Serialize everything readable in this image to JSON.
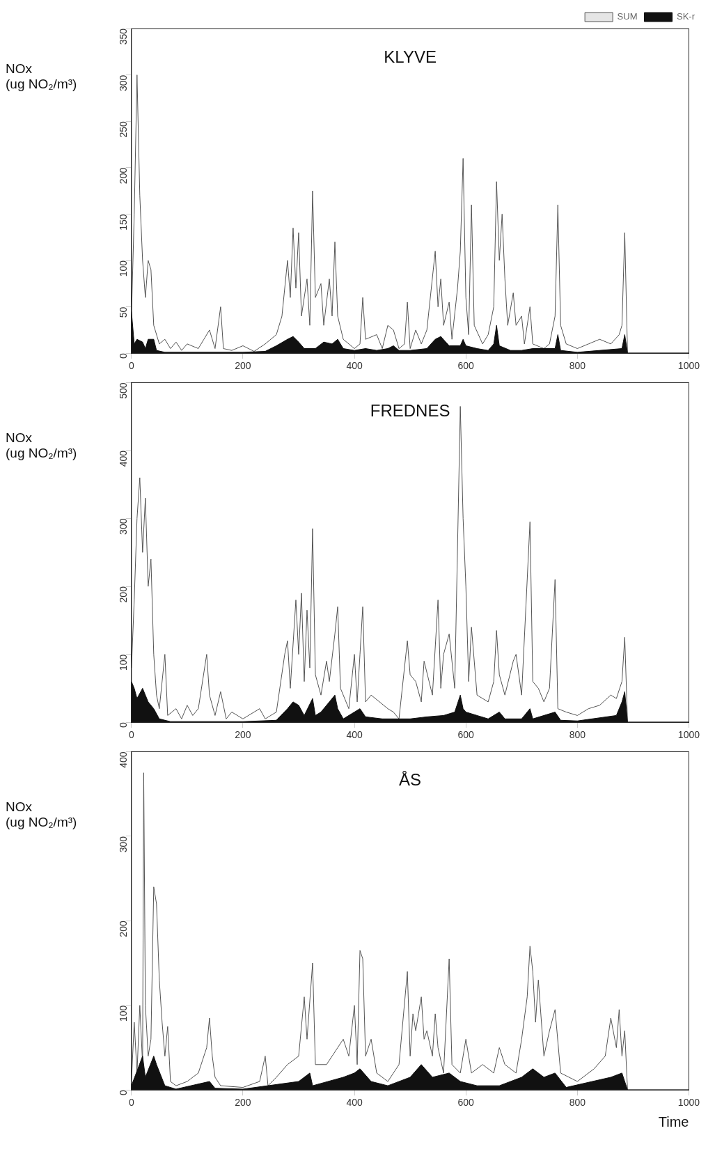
{
  "chart_data": [
    {
      "type": "line",
      "title": "KLYVE",
      "ylabel": "NOx\n(ug NO₂/m³)",
      "xlim": [
        0,
        1000
      ],
      "xticks": [
        0,
        200,
        400,
        600,
        800,
        1000
      ],
      "ylim": [
        0,
        350
      ],
      "yticks": [
        0,
        50,
        100,
        150,
        200,
        250,
        300,
        350
      ],
      "grid": false,
      "legend": "top right",
      "series": [
        {
          "name": "SUM",
          "type": "line",
          "color": "#555555",
          "x": [
            0,
            5,
            10,
            15,
            20,
            25,
            30,
            35,
            40,
            50,
            60,
            70,
            80,
            90,
            100,
            120,
            130,
            140,
            150,
            160,
            165,
            180,
            200,
            220,
            240,
            260,
            270,
            280,
            285,
            290,
            295,
            300,
            305,
            315,
            320,
            325,
            330,
            340,
            345,
            355,
            360,
            365,
            370,
            380,
            400,
            410,
            415,
            420,
            440,
            450,
            460,
            470,
            480,
            490,
            495,
            500,
            510,
            520,
            530,
            545,
            550,
            555,
            560,
            570,
            575,
            585,
            590,
            595,
            600,
            605,
            610,
            615,
            630,
            640,
            650,
            655,
            660,
            665,
            670,
            675,
            685,
            690,
            700,
            705,
            715,
            720,
            740,
            750,
            760,
            765,
            770,
            780,
            800,
            820,
            840,
            860,
            875,
            880,
            885,
            890,
            1000
          ],
          "values": [
            40,
            150,
            300,
            170,
            100,
            60,
            100,
            90,
            30,
            10,
            15,
            5,
            12,
            3,
            10,
            5,
            15,
            25,
            5,
            50,
            5,
            3,
            8,
            2,
            10,
            20,
            40,
            100,
            60,
            135,
            70,
            130,
            40,
            80,
            30,
            175,
            60,
            75,
            30,
            80,
            40,
            120,
            40,
            15,
            5,
            10,
            60,
            15,
            20,
            5,
            30,
            25,
            5,
            10,
            55,
            5,
            25,
            10,
            25,
            110,
            50,
            80,
            30,
            55,
            15,
            70,
            110,
            210,
            60,
            20,
            160,
            30,
            10,
            20,
            50,
            185,
            100,
            150,
            80,
            30,
            65,
            30,
            40,
            10,
            50,
            10,
            5,
            10,
            40,
            160,
            30,
            10,
            5,
            10,
            15,
            10,
            20,
            30,
            130,
            0,
            0
          ]
        },
        {
          "name": "SK-r",
          "type": "area",
          "color": "#111111",
          "x": [
            0,
            5,
            10,
            20,
            25,
            30,
            40,
            45,
            60,
            100,
            200,
            240,
            260,
            280,
            290,
            300,
            310,
            330,
            345,
            360,
            370,
            380,
            400,
            420,
            440,
            460,
            470,
            480,
            500,
            530,
            545,
            555,
            570,
            590,
            595,
            600,
            620,
            640,
            650,
            655,
            660,
            680,
            700,
            720,
            760,
            765,
            770,
            800,
            880,
            885,
            890,
            1000
          ],
          "values": [
            45,
            10,
            15,
            12,
            5,
            15,
            15,
            3,
            1,
            1,
            1,
            2,
            8,
            15,
            18,
            12,
            5,
            5,
            12,
            10,
            15,
            5,
            3,
            5,
            3,
            5,
            8,
            3,
            3,
            5,
            15,
            18,
            8,
            8,
            15,
            8,
            5,
            3,
            10,
            30,
            8,
            3,
            3,
            5,
            5,
            20,
            3,
            1,
            5,
            20,
            0,
            0
          ]
        }
      ]
    },
    {
      "type": "line",
      "title": "FREDNES",
      "ylabel": "NOx\n(ug NO₂/m³)",
      "xlim": [
        0,
        1000
      ],
      "xticks": [
        0,
        200,
        400,
        600,
        800,
        1000
      ],
      "ylim": [
        0,
        500
      ],
      "yticks": [
        0,
        100,
        200,
        300,
        400,
        500
      ],
      "grid": false,
      "series": [
        {
          "type": "line",
          "color": "#555555",
          "x": [
            0,
            5,
            10,
            15,
            20,
            25,
            30,
            35,
            40,
            45,
            50,
            60,
            65,
            80,
            90,
            100,
            110,
            120,
            135,
            140,
            150,
            160,
            170,
            180,
            200,
            230,
            240,
            260,
            275,
            280,
            285,
            295,
            300,
            305,
            310,
            315,
            320,
            325,
            330,
            340,
            350,
            355,
            365,
            370,
            375,
            390,
            400,
            405,
            410,
            415,
            420,
            430,
            445,
            460,
            470,
            480,
            495,
            500,
            510,
            520,
            525,
            540,
            550,
            555,
            560,
            570,
            580,
            590,
            595,
            600,
            605,
            610,
            620,
            640,
            650,
            655,
            660,
            670,
            685,
            690,
            700,
            715,
            720,
            730,
            740,
            750,
            760,
            765,
            780,
            800,
            820,
            840,
            860,
            870,
            880,
            885,
            890,
            1000
          ],
          "values": [
            80,
            180,
            300,
            360,
            250,
            330,
            200,
            240,
            100,
            40,
            20,
            100,
            10,
            20,
            5,
            25,
            10,
            20,
            100,
            40,
            10,
            45,
            5,
            15,
            5,
            20,
            5,
            15,
            100,
            120,
            50,
            180,
            100,
            190,
            60,
            165,
            80,
            285,
            70,
            40,
            90,
            60,
            130,
            170,
            50,
            20,
            100,
            30,
            100,
            170,
            30,
            40,
            30,
            20,
            15,
            5,
            120,
            70,
            60,
            30,
            90,
            40,
            180,
            50,
            100,
            130,
            50,
            465,
            300,
            200,
            60,
            140,
            40,
            30,
            60,
            135,
            70,
            40,
            90,
            100,
            40,
            295,
            60,
            50,
            30,
            50,
            210,
            20,
            15,
            10,
            20,
            25,
            40,
            35,
            60,
            125,
            0,
            0
          ]
        },
        {
          "type": "area",
          "color": "#111111",
          "x": [
            0,
            5,
            10,
            20,
            25,
            30,
            40,
            50,
            70,
            200,
            260,
            280,
            290,
            300,
            310,
            325,
            330,
            340,
            365,
            370,
            380,
            400,
            410,
            420,
            450,
            500,
            530,
            560,
            580,
            590,
            595,
            600,
            620,
            640,
            660,
            670,
            700,
            715,
            720,
            760,
            770,
            800,
            870,
            880,
            885,
            890,
            1000
          ],
          "values": [
            60,
            50,
            35,
            50,
            40,
            30,
            20,
            5,
            1,
            1,
            3,
            20,
            30,
            25,
            10,
            35,
            10,
            15,
            40,
            20,
            5,
            15,
            20,
            8,
            5,
            5,
            8,
            10,
            15,
            40,
            20,
            15,
            10,
            5,
            15,
            5,
            5,
            20,
            5,
            15,
            3,
            2,
            10,
            30,
            45,
            0,
            0
          ]
        }
      ]
    },
    {
      "type": "line",
      "title": "ÅS",
      "ylabel": "NOx\n(ug NO₂/m³)",
      "xlabel": "Time",
      "xlim": [
        0,
        1000
      ],
      "xticks": [
        0,
        200,
        400,
        600,
        800,
        1000
      ],
      "ylim": [
        0,
        400
      ],
      "yticks": [
        0,
        100,
        200,
        300,
        400
      ],
      "grid": false,
      "series": [
        {
          "type": "line",
          "color": "#555555",
          "x": [
            0,
            5,
            10,
            15,
            20,
            22,
            25,
            30,
            35,
            40,
            45,
            50,
            55,
            60,
            65,
            70,
            80,
            100,
            120,
            135,
            140,
            145,
            150,
            160,
            200,
            230,
            240,
            245,
            260,
            280,
            300,
            310,
            315,
            325,
            330,
            350,
            370,
            380,
            390,
            400,
            405,
            410,
            415,
            420,
            430,
            440,
            460,
            480,
            495,
            500,
            505,
            510,
            515,
            520,
            525,
            530,
            540,
            545,
            550,
            560,
            570,
            575,
            590,
            600,
            610,
            630,
            650,
            660,
            670,
            690,
            700,
            710,
            715,
            720,
            725,
            730,
            740,
            750,
            760,
            770,
            800,
            830,
            850,
            860,
            870,
            875,
            880,
            885,
            890,
            1000
          ],
          "values": [
            10,
            80,
            20,
            100,
            30,
            375,
            100,
            40,
            60,
            240,
            220,
            130,
            80,
            40,
            75,
            10,
            5,
            10,
            20,
            50,
            85,
            40,
            15,
            5,
            3,
            10,
            40,
            5,
            15,
            30,
            40,
            110,
            60,
            150,
            30,
            30,
            50,
            60,
            40,
            100,
            30,
            165,
            155,
            40,
            60,
            20,
            10,
            30,
            140,
            40,
            90,
            70,
            90,
            110,
            60,
            70,
            40,
            90,
            50,
            20,
            155,
            30,
            20,
            60,
            20,
            30,
            20,
            50,
            30,
            20,
            60,
            110,
            170,
            140,
            80,
            130,
            40,
            70,
            95,
            20,
            10,
            25,
            40,
            85,
            50,
            95,
            40,
            70,
            0,
            0
          ]
        },
        {
          "type": "area",
          "color": "#111111",
          "x": [
            0,
            20,
            25,
            40,
            45,
            60,
            80,
            140,
            150,
            200,
            300,
            320,
            325,
            380,
            400,
            410,
            430,
            460,
            500,
            520,
            540,
            570,
            590,
            620,
            660,
            700,
            720,
            740,
            760,
            780,
            860,
            880,
            885,
            890,
            1000
          ],
          "values": [
            5,
            40,
            15,
            40,
            30,
            5,
            1,
            10,
            2,
            1,
            10,
            20,
            5,
            15,
            20,
            25,
            10,
            5,
            15,
            30,
            15,
            20,
            10,
            5,
            5,
            15,
            25,
            15,
            20,
            3,
            15,
            20,
            10,
            0,
            0
          ]
        }
      ]
    }
  ]
}
